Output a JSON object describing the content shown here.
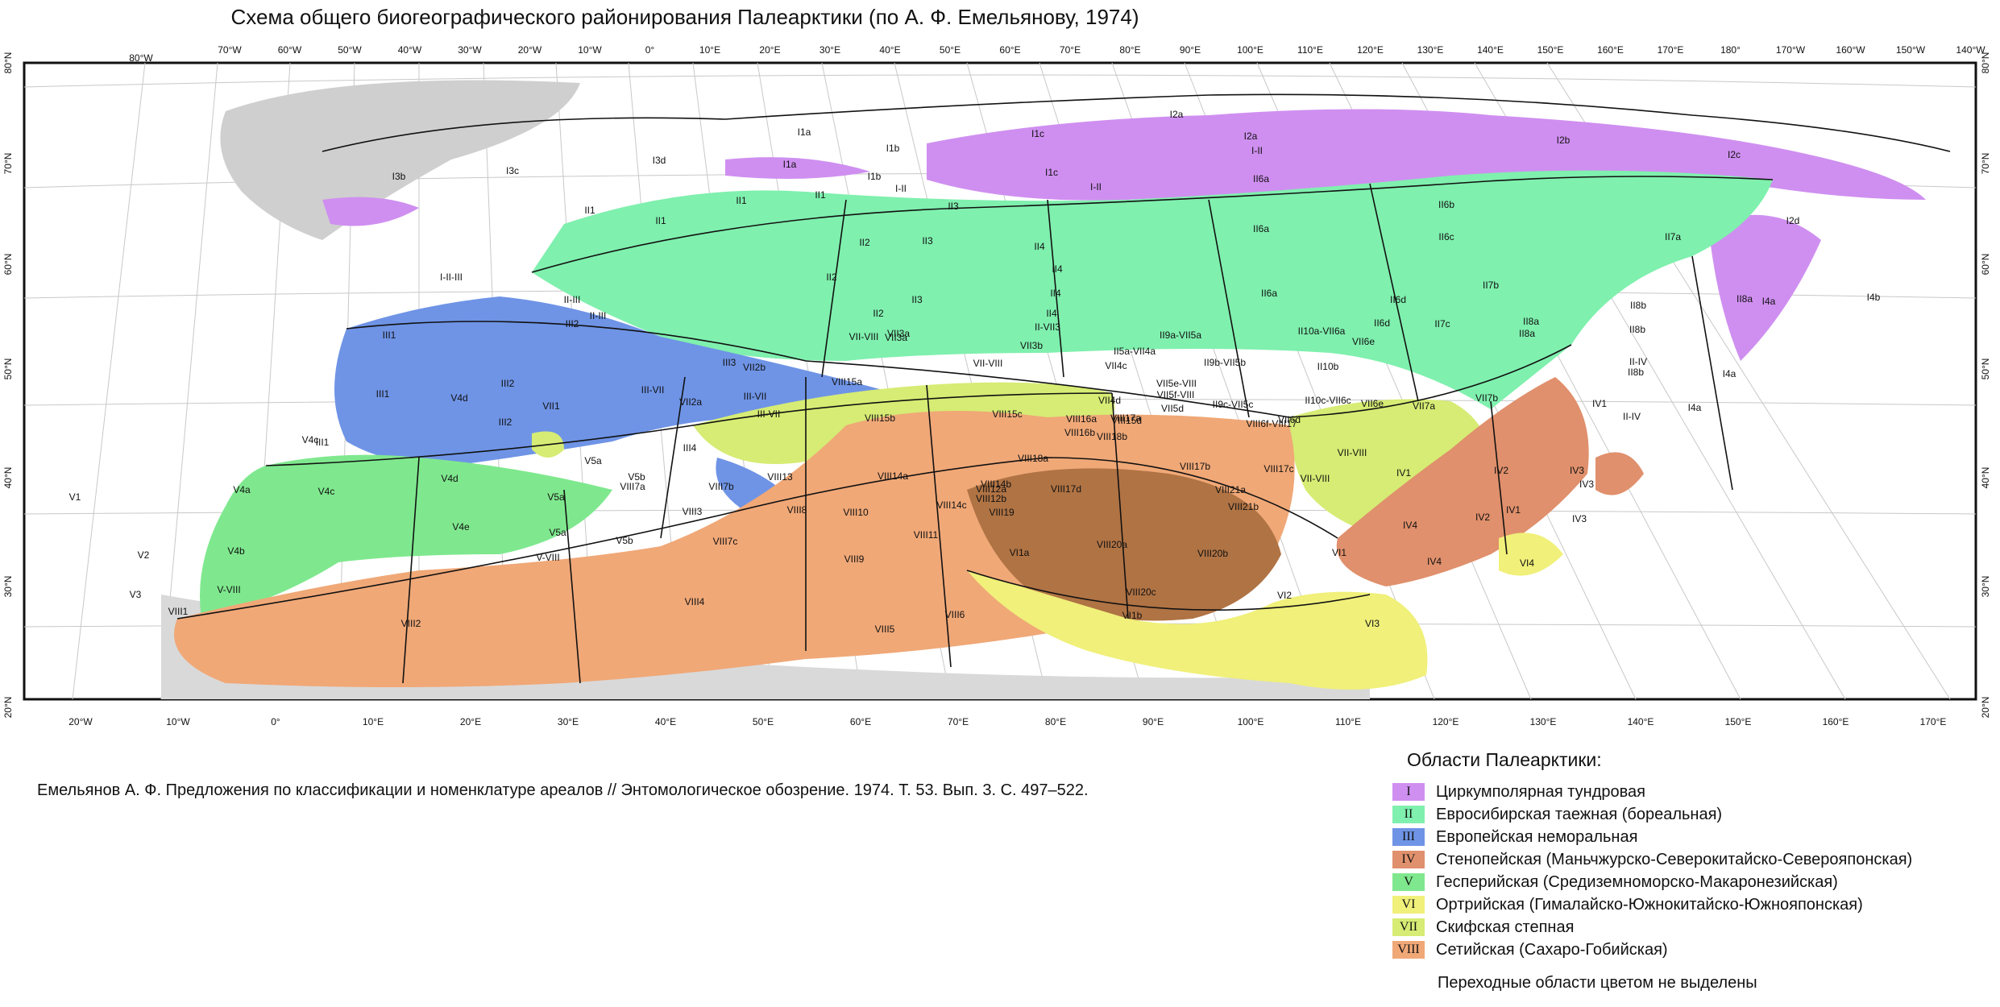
{
  "title": "Схема общего биогеографического районирования Палеарктики (по А. Ф. Емельянову, 1974)",
  "citation": "Емельянов А. Ф. Предложения по классификации и номенклатуре ареалов // Энтомологическое обозрение. 1974. Т. 53. Вып. 3. С. 497–522.",
  "legend": {
    "title": "Области Палеарктики:",
    "items": [
      {
        "code": "I",
        "label": "Циркумполярная тундровая",
        "color": "#cf8ff0"
      },
      {
        "code": "II",
        "label": "Евросибирская таежная (бореальная)",
        "color": "#7ff0ae"
      },
      {
        "code": "III",
        "label": "Европейская неморальная",
        "color": "#6f94e6"
      },
      {
        "code": "IV",
        "label": "Стенопейская (Маньчжурско-Северокитайско-Североя­понская)",
        "color": "#e0906c"
      },
      {
        "code": "V",
        "label": "Гесперийская (Средиземноморско-Макаронезийская)",
        "color": "#7fe88e"
      },
      {
        "code": "VI",
        "label": "Ортрийская (Гималайско-Южнокитайско-Южнояпонская)",
        "color": "#f0f07a"
      },
      {
        "code": "VII",
        "label": "Скифская степная",
        "color": "#d6ec74"
      },
      {
        "code": "VIII",
        "label": "Сетийская (Сахаро-Гобийская)",
        "color": "#f0a877"
      }
    ],
    "note": "Переходные области цветом не выделены"
  },
  "axes": {
    "top_longitudes": [
      "80°W",
      "70°W",
      "60°W",
      "50°W",
      "40°W",
      "30°W",
      "20°W",
      "10°W",
      "0°",
      "10°E",
      "20°E",
      "30°E",
      "40°E",
      "50°E",
      "60°E",
      "70°E",
      "80°E",
      "90°E",
      "100°E",
      "110°E",
      "120°E",
      "130°E",
      "140°E",
      "150°E",
      "160°E",
      "170°E",
      "180°",
      "170°W",
      "160°W",
      "150°W",
      "140°W"
    ],
    "bottom_longitudes": [
      "20°W",
      "10°W",
      "0°",
      "10°E",
      "20°E",
      "30°E",
      "40°E",
      "50°E",
      "60°E",
      "70°E",
      "80°E",
      "90°E",
      "100°E",
      "110°E",
      "120°E",
      "130°E",
      "140°E",
      "150°E",
      "160°E",
      "170°E"
    ],
    "latitudes": [
      "80°N",
      "70°N",
      "60°N",
      "50°N",
      "40°N",
      "30°N",
      "20°N"
    ],
    "right_latitudes": [
      "80°N",
      "70°N",
      "60°N",
      "50°N",
      "40°N",
      "30°N",
      "20°N"
    ]
  },
  "region_labels": [
    "I1a",
    "I1a",
    "I1b",
    "I1b",
    "I1c",
    "I1c",
    "I2a",
    "I2a",
    "I2b",
    "I2c",
    "I2d",
    "I3b",
    "I3c",
    "I3d",
    "I4a",
    "I4a",
    "I4a",
    "I4b",
    "I-II",
    "I-II",
    "I-II",
    "I-II-III",
    "II1",
    "II1",
    "II1",
    "II1",
    "II2",
    "II2",
    "II2",
    "II3",
    "II3",
    "II3",
    "II4",
    "II4",
    "II4",
    "II4",
    "II5a-VII4a",
    "II6a",
    "II6a",
    "II6a",
    "II6b",
    "II6c",
    "II6d",
    "II6d",
    "II7a",
    "II7b",
    "II7c",
    "II8a",
    "II8a",
    "II8a",
    "II8b",
    "II8b",
    "II8b",
    "II9a-VII5a",
    "II9b-VII5b",
    "II9c-VII5c",
    "II10a-VII6a",
    "II10b",
    "II10c-VII6c",
    "II-III",
    "II-III",
    "II-VII3",
    "II-IV",
    "II-IV",
    "III1",
    "III1",
    "III1",
    "III2",
    "III2",
    "III2",
    "III3",
    "III4",
    "III-VII",
    "III-VII",
    "III-VII",
    "IV1",
    "IV1",
    "IV1",
    "IV2",
    "IV2",
    "IV3",
    "IV3",
    "IV3",
    "IV4",
    "IV4",
    "V1",
    "V2",
    "V3",
    "V4a",
    "V4b",
    "V4c",
    "V4c",
    "V4d",
    "V4d",
    "V4e",
    "V5a",
    "V5a",
    "V5a",
    "V5b",
    "V5b",
    "V-VIII",
    "V-VIII",
    "VI1",
    "VI1a",
    "VI1b",
    "VI2",
    "VI3",
    "VI4",
    "VII1",
    "VII2a",
    "VII2b",
    "VII3a",
    "VII3a",
    "VII3b",
    "VII4c",
    "VII4d",
    "VII5d",
    "VII5e-VIII",
    "VII5f-VIII",
    "VII6d",
    "VII6e",
    "VII6e",
    "VII7a",
    "VII7b",
    "VII-VIII",
    "VII-VIII",
    "VII-VIII",
    "VII-VIII",
    "VIII1",
    "VIII2",
    "VIII3",
    "VIII4",
    "VIII5",
    "VIII6",
    "VIII7a",
    "VIII7b",
    "VIII7c",
    "VIII8",
    "VIII9",
    "VIII10",
    "VIII11",
    "VIII12a",
    "VIII12b",
    "VIII13",
    "VIII14a",
    "VIII14b",
    "VIII14c",
    "VIII15a",
    "VIII15b",
    "VIII15c",
    "VIII15d",
    "VIII16a",
    "VIII16b",
    "VIII17a",
    "VIII17b",
    "VIII17c",
    "VIII17d",
    "VIII18a",
    "VIII18b",
    "VIII19",
    "VIII20a",
    "VIII20b",
    "VIII20c",
    "VIII21a",
    "VIII21b",
    "VIII6f-VIII17"
  ]
}
